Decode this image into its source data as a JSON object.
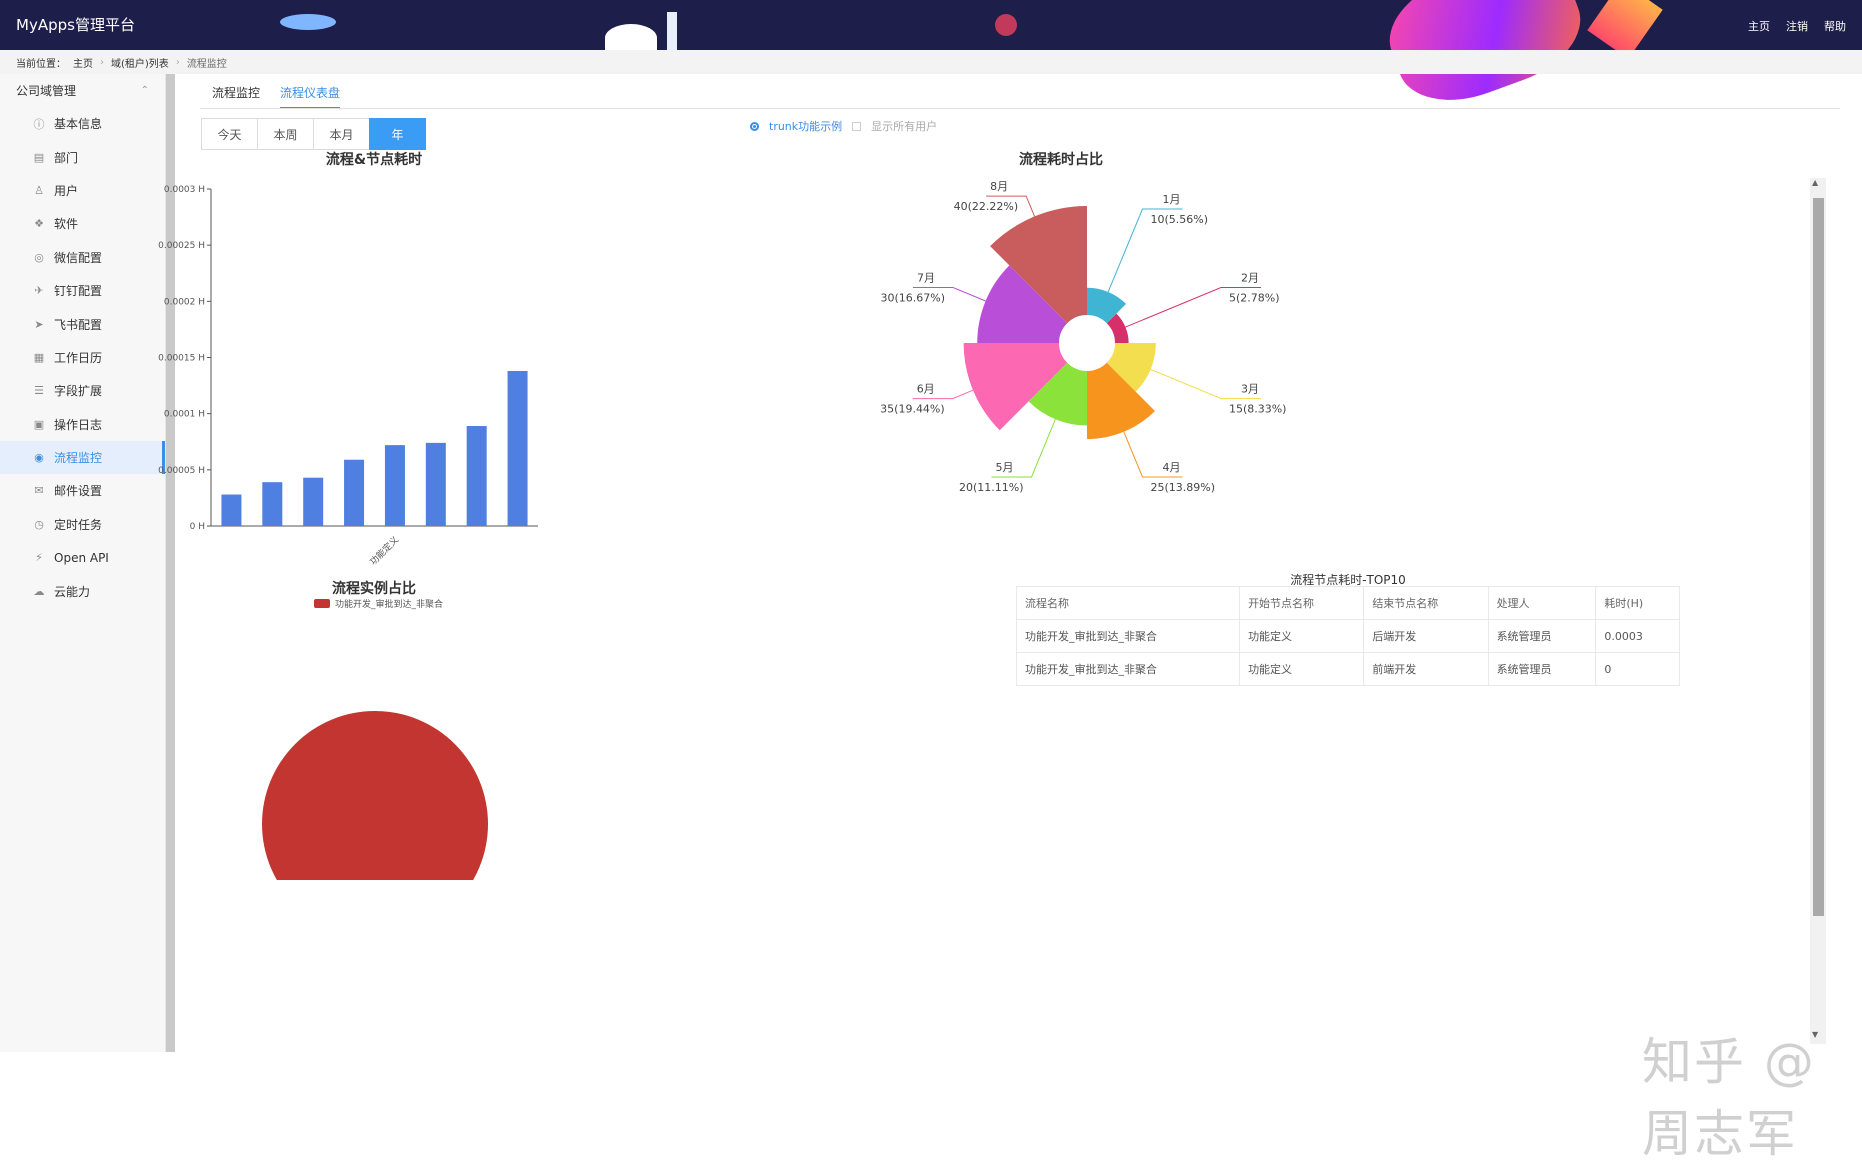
{
  "header": {
    "brand": "MyApps管理平台",
    "links": [
      "主页",
      "注销",
      "帮助"
    ]
  },
  "breadcrumb": {
    "prefix": "当前位置：",
    "items": [
      "主页",
      "域(租户)列表",
      "流程监控"
    ]
  },
  "sidebar": {
    "group": "公司域管理",
    "items": [
      {
        "label": "基本信息",
        "icon": "info-icon"
      },
      {
        "label": "部门",
        "icon": "building-icon"
      },
      {
        "label": "用户",
        "icon": "user-icon"
      },
      {
        "label": "软件",
        "icon": "cubes-icon"
      },
      {
        "label": "微信配置",
        "icon": "wechat-icon"
      },
      {
        "label": "钉钉配置",
        "icon": "pin-icon"
      },
      {
        "label": "飞书配置",
        "icon": "paper-plane-icon"
      },
      {
        "label": "工作日历",
        "icon": "calendar-icon"
      },
      {
        "label": "字段扩展",
        "icon": "sliders-icon"
      },
      {
        "label": "操作日志",
        "icon": "log-icon"
      },
      {
        "label": "流程监控",
        "icon": "dashboard-icon",
        "active": true
      },
      {
        "label": "邮件设置",
        "icon": "mail-icon"
      },
      {
        "label": "定时任务",
        "icon": "clock-icon"
      },
      {
        "label": "Open API",
        "icon": "plug-icon"
      },
      {
        "label": "云能力",
        "icon": "cloud-icon"
      }
    ]
  },
  "tabs": [
    {
      "label": "流程监控"
    },
    {
      "label": "流程仪表盘",
      "active": true
    }
  ],
  "range_buttons": [
    {
      "label": "今天"
    },
    {
      "label": "本周"
    },
    {
      "label": "本月"
    },
    {
      "label": "年",
      "active": true
    }
  ],
  "options": {
    "radio_label": "trunk功能示例",
    "checkbox_label": "显示所有用户"
  },
  "chart_data": [
    {
      "type": "bar",
      "title": "流程&节点耗时",
      "categories": [
        "",
        "",
        "",
        "",
        "功能定义",
        "",
        "",
        ""
      ],
      "values": [
        2.8e-05,
        3.9e-05,
        4.3e-05,
        5.9e-05,
        7.2e-05,
        7.4e-05,
        8.9e-05,
        0.000138
      ],
      "y_ticks": [
        "0 H",
        "0.00005 H",
        "0.0001 H",
        "0.00015 H",
        "0.0002 H",
        "0.00025 H",
        "0.0003 H"
      ],
      "ylim": [
        0,
        0.0003
      ],
      "color": "#4f7fe0"
    },
    {
      "type": "pie",
      "title": "流程实例占比",
      "legend": [
        "功能开发_审批到达_非聚合"
      ],
      "values": [
        1
      ],
      "color": "#c23531"
    },
    {
      "type": "pie",
      "subtype": "rose",
      "title": "流程耗时占比",
      "slices": [
        {
          "name": "1月",
          "value": 10,
          "label": "10(5.56%)",
          "color": "#3fb4d3"
        },
        {
          "name": "2月",
          "value": 5,
          "label": "5(2.78%)",
          "color": "#d62f69"
        },
        {
          "name": "3月",
          "value": 15,
          "label": "15(8.33%)",
          "color": "#f2de4e"
        },
        {
          "name": "4月",
          "value": 25,
          "label": "25(13.89%)",
          "color": "#f7941d"
        },
        {
          "name": "5月",
          "value": 20,
          "label": "20(11.11%)",
          "color": "#8ae23a"
        },
        {
          "name": "6月",
          "value": 35,
          "label": "35(19.44%)",
          "color": "#fc68b1"
        },
        {
          "name": "7月",
          "value": 30,
          "label": "30(16.67%)",
          "color": "#b94fd8"
        },
        {
          "name": "8月",
          "value": 40,
          "label": "40(22.22%)",
          "color": "#c95c5c"
        }
      ]
    }
  ],
  "top10": {
    "title": "流程节点耗时-TOP10",
    "columns": [
      "流程名称",
      "开始节点名称",
      "结束节点名称",
      "处理人",
      "耗时(H)"
    ],
    "rows": [
      [
        "功能开发_审批到达_非聚合",
        "功能定义",
        "后端开发",
        "系统管理员",
        "0.0003"
      ],
      [
        "功能开发_审批到达_非聚合",
        "功能定义",
        "前端开发",
        "系统管理员",
        "0"
      ]
    ]
  },
  "watermark": "知乎 @周志军"
}
